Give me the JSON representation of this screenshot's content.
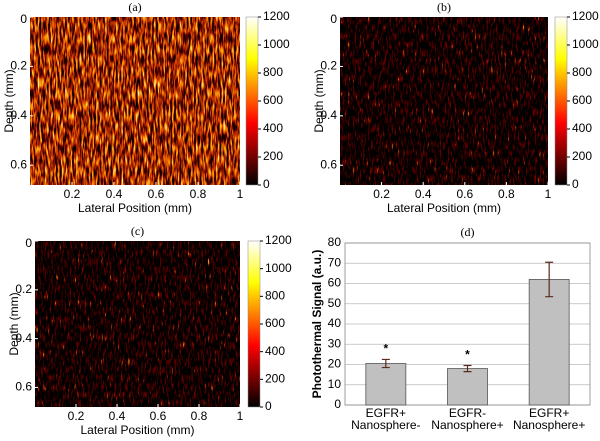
{
  "chart_data": [
    {
      "type": "heatmap",
      "title": "(a)",
      "x_label": "Lateral Position (mm)",
      "y_label": "Depth (mm)",
      "xlim": [
        0,
        1
      ],
      "xticks": [
        0.2,
        0.4,
        0.6,
        0.8,
        1
      ],
      "ylim": [
        0,
        0.68
      ],
      "yticks": [
        0,
        0.2,
        0.4,
        0.6
      ],
      "y_inverted": true,
      "colormap": "hot",
      "clim": [
        0,
        1200
      ],
      "cticks": [
        0,
        200,
        400,
        600,
        800,
        1000,
        1200
      ]
    },
    {
      "type": "heatmap",
      "title": "(b)",
      "x_label": "Lateral Position (mm)",
      "y_label": "Depth (mm)",
      "xlim": [
        0,
        1
      ],
      "xticks": [
        0.2,
        0.4,
        0.6,
        0.8,
        1
      ],
      "ylim": [
        0,
        0.68
      ],
      "yticks": [
        0,
        0.2,
        0.4,
        0.6
      ],
      "y_inverted": true,
      "colormap": "hot",
      "clim": [
        0,
        1200
      ],
      "cticks": [
        0,
        200,
        400,
        600,
        800,
        1000,
        1200
      ]
    },
    {
      "type": "heatmap",
      "title": "(c)",
      "x_label": "Lateral Position (mm)",
      "y_label": "Depth (mm)",
      "xlim": [
        0,
        1
      ],
      "xticks": [
        0.2,
        0.4,
        0.6,
        0.8,
        1
      ],
      "ylim": [
        0,
        0.68
      ],
      "yticks": [
        0,
        0.2,
        0.4,
        0.6
      ],
      "y_inverted": true,
      "colormap": "hot",
      "clim": [
        0,
        1200
      ],
      "cticks": [
        0,
        200,
        400,
        600,
        800,
        1000,
        1200
      ]
    },
    {
      "type": "bar",
      "title": "(d)",
      "y_label": "Photothermal Signal (a.u.)",
      "categories": [
        [
          "EGFR+",
          "Nanosphere-"
        ],
        [
          "EGFR-",
          "Nanosphere+"
        ],
        [
          "EGFR+",
          "Nanosphere+"
        ]
      ],
      "values": [
        20.5,
        18,
        62
      ],
      "errors": [
        2,
        1.5,
        8.5
      ],
      "annotations": [
        "*",
        "*",
        null
      ],
      "color": "#c0c0c0",
      "ylim": [
        0,
        80
      ],
      "yticks": [
        0,
        10,
        20,
        30,
        40,
        50,
        60,
        70,
        80
      ],
      "grid": true
    }
  ]
}
